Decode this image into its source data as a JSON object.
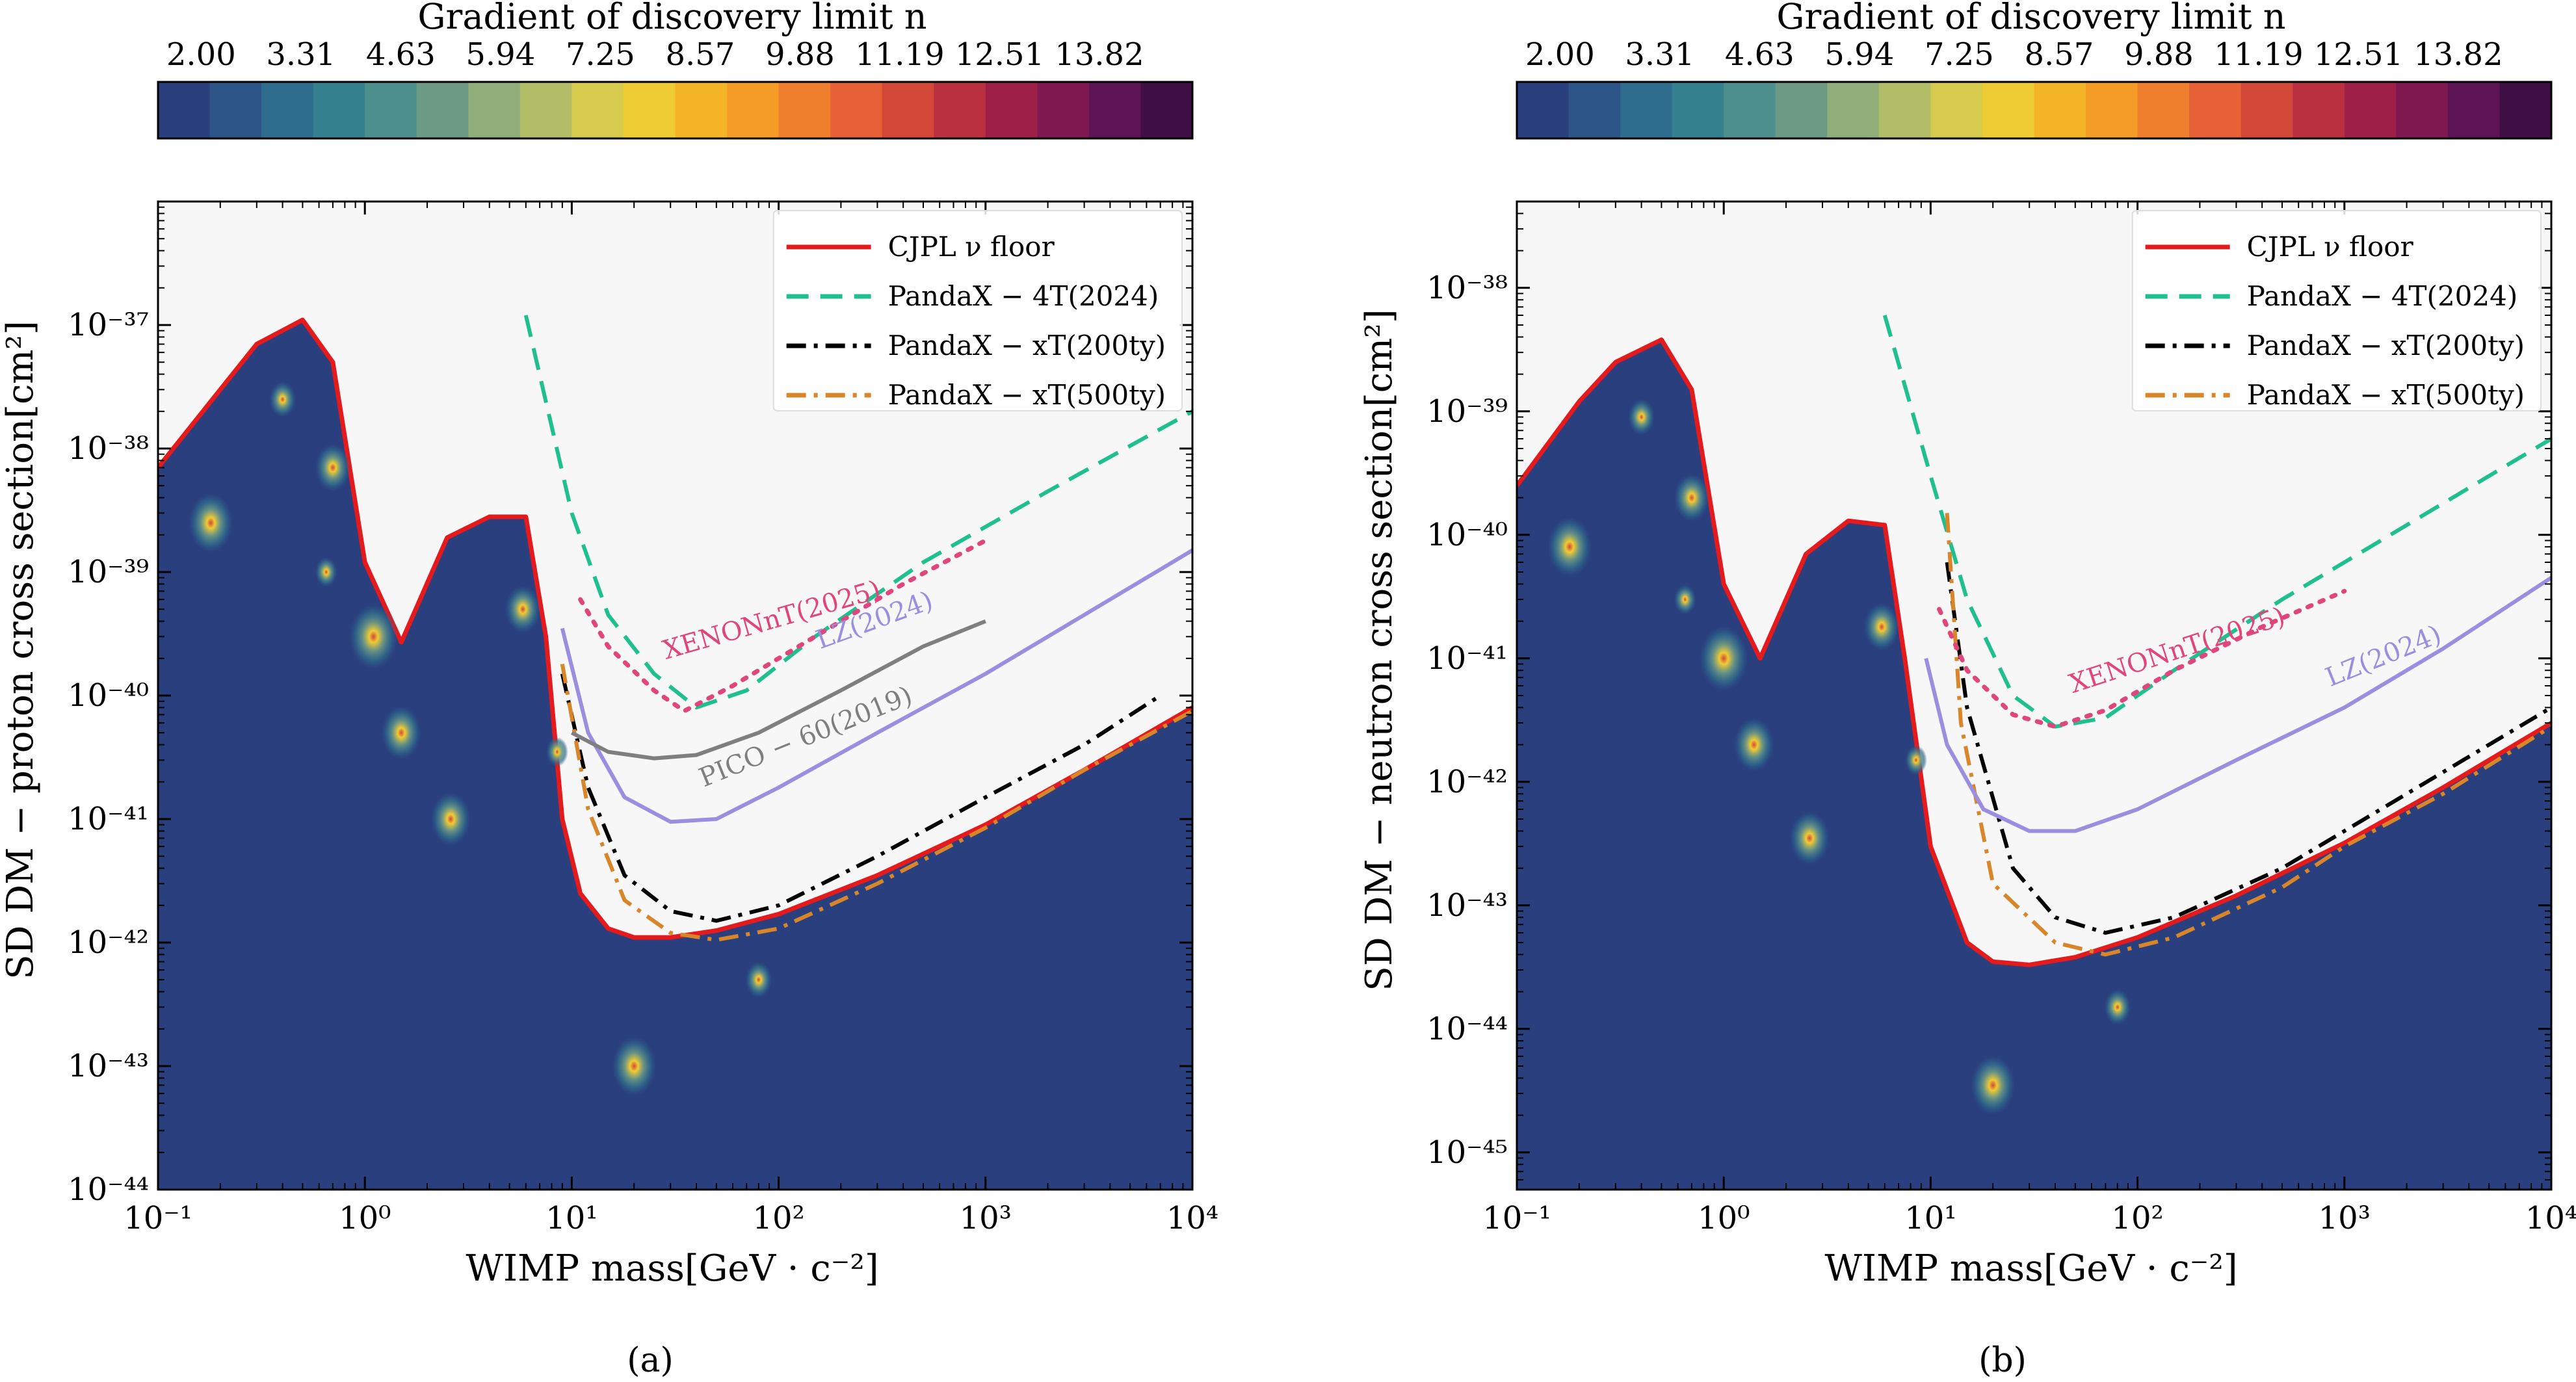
{
  "colorbar": {
    "title": "Gradient of discovery limit n",
    "ticks": [
      "2.00",
      "3.31",
      "4.63",
      "5.94",
      "7.25",
      "8.57",
      "9.88",
      "11.19",
      "12.51",
      "13.82"
    ],
    "colors": [
      "#2a3f7e",
      "#2d5587",
      "#2e6d8e",
      "#35818f",
      "#4d8f8c",
      "#6d9a85",
      "#8fae7a",
      "#b3bd67",
      "#d6cb4d",
      "#efcb34",
      "#f4b428",
      "#f59c26",
      "#ef7e2d",
      "#e66136",
      "#d4483a",
      "#bb3041",
      "#9e2048",
      "#7f1850",
      "#5d1457",
      "#3e0e45"
    ]
  },
  "legend": [
    {
      "label": "CJPL ν floor",
      "color": "#e41a1c",
      "style": "solid"
    },
    {
      "label": "PandaX − 4T(2024)",
      "color": "#1fbf8f",
      "style": "dashed"
    },
    {
      "label": "PandaX − xT(200ty)",
      "color": "#000000",
      "style": "dashdot"
    },
    {
      "label": "PandaX − xT(500ty)",
      "color": "#d9862a",
      "style": "dashdot"
    }
  ],
  "chart_data": [
    {
      "type": "line",
      "caption": "(a)",
      "xlabel": "WIMP mass[GeV · c⁻²]",
      "ylabel": "SD DM − proton cross section[cm²]",
      "xscale": "log",
      "yscale": "log",
      "xlim": [
        0.1,
        10000
      ],
      "ylim": [
        1e-44,
        1e-36
      ],
      "xticks": [
        {
          "v": 0.1,
          "label": "10⁻¹"
        },
        {
          "v": 1,
          "label": "10⁰"
        },
        {
          "v": 10,
          "label": "10¹"
        },
        {
          "v": 100,
          "label": "10²"
        },
        {
          "v": 1000,
          "label": "10³"
        },
        {
          "v": 10000,
          "label": "10⁴"
        }
      ],
      "yticks": [
        {
          "v": 1e-44,
          "label": "10⁻⁴⁴"
        },
        {
          "v": 1e-43,
          "label": "10⁻⁴³"
        },
        {
          "v": 1e-42,
          "label": "10⁻⁴²"
        },
        {
          "v": 1e-41,
          "label": "10⁻⁴¹"
        },
        {
          "v": 1e-40,
          "label": "10⁻⁴⁰"
        },
        {
          "v": 1e-39,
          "label": "10⁻³⁹"
        },
        {
          "v": 1e-38,
          "label": "10⁻³⁸"
        },
        {
          "v": 1e-37,
          "label": "10⁻³⁷"
        }
      ],
      "floor": [
        [
          0.1,
          7e-39
        ],
        [
          0.2,
          3e-38
        ],
        [
          0.3,
          7e-38
        ],
        [
          0.5,
          1.1e-37
        ],
        [
          0.7,
          5e-38
        ],
        [
          1.0,
          1.2e-39
        ],
        [
          1.5,
          2.7e-40
        ],
        [
          2.5,
          1.9e-39
        ],
        [
          4.0,
          2.8e-39
        ],
        [
          6.0,
          2.8e-39
        ],
        [
          7.5,
          3e-40
        ],
        [
          9.0,
          1e-41
        ],
        [
          11,
          2.5e-42
        ],
        [
          15,
          1.3e-42
        ],
        [
          20,
          1.1e-42
        ],
        [
          30,
          1.1e-42
        ],
        [
          50,
          1.25e-42
        ],
        [
          100,
          1.7e-42
        ],
        [
          300,
          3.5e-42
        ],
        [
          1000,
          9e-42
        ],
        [
          3000,
          2.5e-41
        ],
        [
          10000,
          8e-41
        ]
      ],
      "series": [
        {
          "name": "PandaX − 4T(2024)",
          "color": "#1fbf8f",
          "style": "dashed",
          "points": [
            [
              6,
              1.2e-37
            ],
            [
              10,
              3e-39
            ],
            [
              15,
              4.5e-40
            ],
            [
              25,
              1.5e-40
            ],
            [
              40,
              8e-41
            ],
            [
              70,
              1.1e-40
            ],
            [
              150,
              3e-40
            ],
            [
              500,
              1.2e-39
            ],
            [
              2000,
              4.5e-39
            ],
            [
              10000,
              2e-38
            ]
          ]
        },
        {
          "name": "PandaX − xT(200ty)",
          "color": "#000000",
          "style": "dashdot",
          "points": [
            [
              9,
              1.5e-40
            ],
            [
              12,
              1.8e-41
            ],
            [
              18,
              3.5e-42
            ],
            [
              30,
              1.8e-42
            ],
            [
              50,
              1.5e-42
            ],
            [
              100,
              2e-42
            ],
            [
              300,
              5e-42
            ],
            [
              1000,
              1.5e-41
            ],
            [
              3000,
              4e-41
            ],
            [
              7000,
              1e-40
            ]
          ]
        },
        {
          "name": "PandaX − xT(500ty)",
          "color": "#d9862a",
          "style": "dashdot",
          "points": [
            [
              9,
              1.8e-40
            ],
            [
              12,
              1.2e-41
            ],
            [
              18,
              2.2e-42
            ],
            [
              30,
              1.2e-42
            ],
            [
              50,
              1.05e-42
            ],
            [
              100,
              1.3e-42
            ],
            [
              300,
              3e-42
            ],
            [
              1000,
              8.5e-42
            ],
            [
              3000,
              2.5e-41
            ],
            [
              10000,
              7.5e-41
            ]
          ]
        },
        {
          "name": "XENONnT(2025)",
          "color": "#e0457b",
          "style": "dotted",
          "points": [
            [
              11,
              6e-40
            ],
            [
              15,
              2.5e-40
            ],
            [
              25,
              1.1e-40
            ],
            [
              35,
              7.5e-41
            ],
            [
              60,
              1.2e-40
            ],
            [
              150,
              3e-40
            ],
            [
              400,
              8e-40
            ],
            [
              1000,
              1.8e-39
            ]
          ]
        },
        {
          "name": "LZ(2024)",
          "color": "#9b8ee0",
          "style": "solid",
          "points": [
            [
              9,
              3.5e-40
            ],
            [
              12,
              5e-41
            ],
            [
              18,
              1.5e-41
            ],
            [
              30,
              9.5e-42
            ],
            [
              50,
              1e-41
            ],
            [
              100,
              1.8e-41
            ],
            [
              300,
              5e-41
            ],
            [
              1000,
              1.5e-40
            ],
            [
              3000,
              4.5e-40
            ],
            [
              10000,
              1.5e-39
            ]
          ]
        },
        {
          "name": "PICO − 60(2019)",
          "color": "#7f7f7f",
          "style": "solid",
          "points": [
            [
              10,
              5e-41
            ],
            [
              15,
              3.5e-41
            ],
            [
              25,
              3.1e-41
            ],
            [
              40,
              3.3e-41
            ],
            [
              80,
              5e-41
            ],
            [
              200,
              1.1e-40
            ],
            [
              500,
              2.5e-40
            ],
            [
              1000,
              4e-40
            ]
          ]
        }
      ],
      "labels": [
        {
          "text": "XENONnT(2025)",
          "color": "#e0457b",
          "x": 95,
          "y": 3.5e-40,
          "angle": -16
        },
        {
          "text": "LZ(2024)",
          "color": "#9b8ee0",
          "x": 300,
          "y": 3.5e-40,
          "angle": -20
        },
        {
          "text": "PICO − 60(2019)",
          "color": "#7f7f7f",
          "x": 140,
          "y": 4e-41,
          "angle": -22
        }
      ],
      "hotspots": [
        [
          0.18,
          2.5e-39,
          1.0
        ],
        [
          0.7,
          7e-39,
          0.8
        ],
        [
          0.4,
          2.5e-38,
          0.6
        ],
        [
          1.1,
          3e-40,
          1.1
        ],
        [
          1.5,
          5e-41,
          0.9
        ],
        [
          2.6,
          1e-41,
          0.9
        ],
        [
          5.8,
          5e-40,
          0.8
        ],
        [
          8.5,
          3.5e-41,
          0.5
        ],
        [
          20,
          1e-43,
          1.0
        ],
        [
          80,
          5e-43,
          0.6
        ],
        [
          0.65,
          1e-39,
          0.5
        ]
      ]
    },
    {
      "type": "line",
      "caption": "(b)",
      "xlabel": "WIMP mass[GeV · c⁻²]",
      "ylabel": "SD DM − neutron cross section[cm²]",
      "xscale": "log",
      "yscale": "log",
      "xlim": [
        0.1,
        10000
      ],
      "ylim": [
        5e-46,
        5e-38
      ],
      "xticks": [
        {
          "v": 0.1,
          "label": "10⁻¹"
        },
        {
          "v": 1,
          "label": "10⁰"
        },
        {
          "v": 10,
          "label": "10¹"
        },
        {
          "v": 100,
          "label": "10²"
        },
        {
          "v": 1000,
          "label": "10³"
        },
        {
          "v": 10000,
          "label": "10⁴"
        }
      ],
      "yticks": [
        {
          "v": 1e-45,
          "label": "10⁻⁴⁵"
        },
        {
          "v": 1e-44,
          "label": "10⁻⁴⁴"
        },
        {
          "v": 1e-43,
          "label": "10⁻⁴³"
        },
        {
          "v": 1e-42,
          "label": "10⁻⁴²"
        },
        {
          "v": 1e-41,
          "label": "10⁻⁴¹"
        },
        {
          "v": 1e-40,
          "label": "10⁻⁴⁰"
        },
        {
          "v": 1e-39,
          "label": "10⁻³⁹"
        },
        {
          "v": 1e-38,
          "label": "10⁻³⁸"
        }
      ],
      "floor": [
        [
          0.1,
          2.5e-40
        ],
        [
          0.2,
          1.2e-39
        ],
        [
          0.3,
          2.5e-39
        ],
        [
          0.5,
          3.8e-39
        ],
        [
          0.7,
          1.5e-39
        ],
        [
          1.0,
          4e-41
        ],
        [
          1.5,
          1e-41
        ],
        [
          2.5,
          7e-41
        ],
        [
          4.0,
          1.3e-40
        ],
        [
          6.0,
          1.2e-40
        ],
        [
          7.5,
          1e-41
        ],
        [
          10,
          3e-43
        ],
        [
          15,
          5e-44
        ],
        [
          20,
          3.5e-44
        ],
        [
          30,
          3.3e-44
        ],
        [
          50,
          3.8e-44
        ],
        [
          100,
          5.5e-44
        ],
        [
          300,
          1.2e-43
        ],
        [
          1000,
          3.2e-43
        ],
        [
          3000,
          9e-43
        ],
        [
          10000,
          3e-42
        ]
      ],
      "series": [
        {
          "name": "PandaX − 4T(2024)",
          "color": "#1fbf8f",
          "style": "dashed",
          "points": [
            [
              6,
              6e-39
            ],
            [
              10,
              3e-40
            ],
            [
              15,
              3e-41
            ],
            [
              25,
              5e-42
            ],
            [
              40,
              2.8e-42
            ],
            [
              70,
              3.3e-42
            ],
            [
              150,
              8e-42
            ],
            [
              500,
              3e-41
            ],
            [
              2000,
              1.2e-40
            ],
            [
              10000,
              6e-40
            ]
          ]
        },
        {
          "name": "PandaX − xT(200ty)",
          "color": "#000000",
          "style": "dashdot",
          "points": [
            [
              12,
              6e-41
            ],
            [
              15,
              4e-42
            ],
            [
              25,
              2e-43
            ],
            [
              40,
              8e-44
            ],
            [
              70,
              6e-44
            ],
            [
              150,
              8e-44
            ],
            [
              500,
              2e-43
            ],
            [
              1000,
              4e-43
            ],
            [
              3000,
              1.2e-42
            ],
            [
              10000,
              4e-42
            ]
          ]
        },
        {
          "name": "PandaX − xT(500ty)",
          "color": "#d9862a",
          "style": "dashdot",
          "points": [
            [
              12,
              1.5e-40
            ],
            [
              14,
              3e-42
            ],
            [
              20,
              1.5e-43
            ],
            [
              40,
              5e-44
            ],
            [
              70,
              4e-44
            ],
            [
              150,
              5.5e-44
            ],
            [
              500,
              1.4e-43
            ],
            [
              1000,
              3e-43
            ],
            [
              3000,
              8e-43
            ],
            [
              10000,
              2.8e-42
            ]
          ]
        },
        {
          "name": "XENONnT(2025)",
          "color": "#e0457b",
          "style": "dotted",
          "points": [
            [
              11,
              2.5e-41
            ],
            [
              15,
              8e-42
            ],
            [
              25,
              3.5e-42
            ],
            [
              40,
              2.8e-42
            ],
            [
              70,
              3.8e-42
            ],
            [
              150,
              8e-42
            ],
            [
              400,
              1.8e-41
            ],
            [
              1000,
              3.5e-41
            ]
          ]
        },
        {
          "name": "LZ(2024)",
          "color": "#9b8ee0",
          "style": "solid",
          "points": [
            [
              9.5,
              1e-41
            ],
            [
              12,
              2e-42
            ],
            [
              18,
              6e-43
            ],
            [
              30,
              4e-43
            ],
            [
              50,
              4e-43
            ],
            [
              100,
              6e-43
            ],
            [
              300,
              1.5e-42
            ],
            [
              1000,
              4e-42
            ],
            [
              3000,
              1.2e-41
            ],
            [
              10000,
              4.5e-41
            ]
          ]
        }
      ],
      "labels": [
        {
          "text": "XENONnT(2025)",
          "color": "#e0457b",
          "x": 160,
          "y": 1e-41,
          "angle": -18
        },
        {
          "text": "LZ(2024)",
          "color": "#9b8ee0",
          "x": 1600,
          "y": 9e-42,
          "angle": -22
        }
      ],
      "hotspots": [
        [
          0.18,
          8e-41,
          1.0
        ],
        [
          0.7,
          2e-40,
          0.8
        ],
        [
          0.4,
          9e-40,
          0.6
        ],
        [
          1.0,
          1e-41,
          1.1
        ],
        [
          1.4,
          2e-42,
          0.9
        ],
        [
          2.6,
          3.5e-43,
          0.9
        ],
        [
          5.8,
          1.8e-41,
          0.8
        ],
        [
          8.5,
          1.5e-42,
          0.5
        ],
        [
          20,
          3.5e-45,
          1.0
        ],
        [
          80,
          1.5e-44,
          0.6
        ],
        [
          0.65,
          3e-41,
          0.5
        ]
      ]
    }
  ]
}
